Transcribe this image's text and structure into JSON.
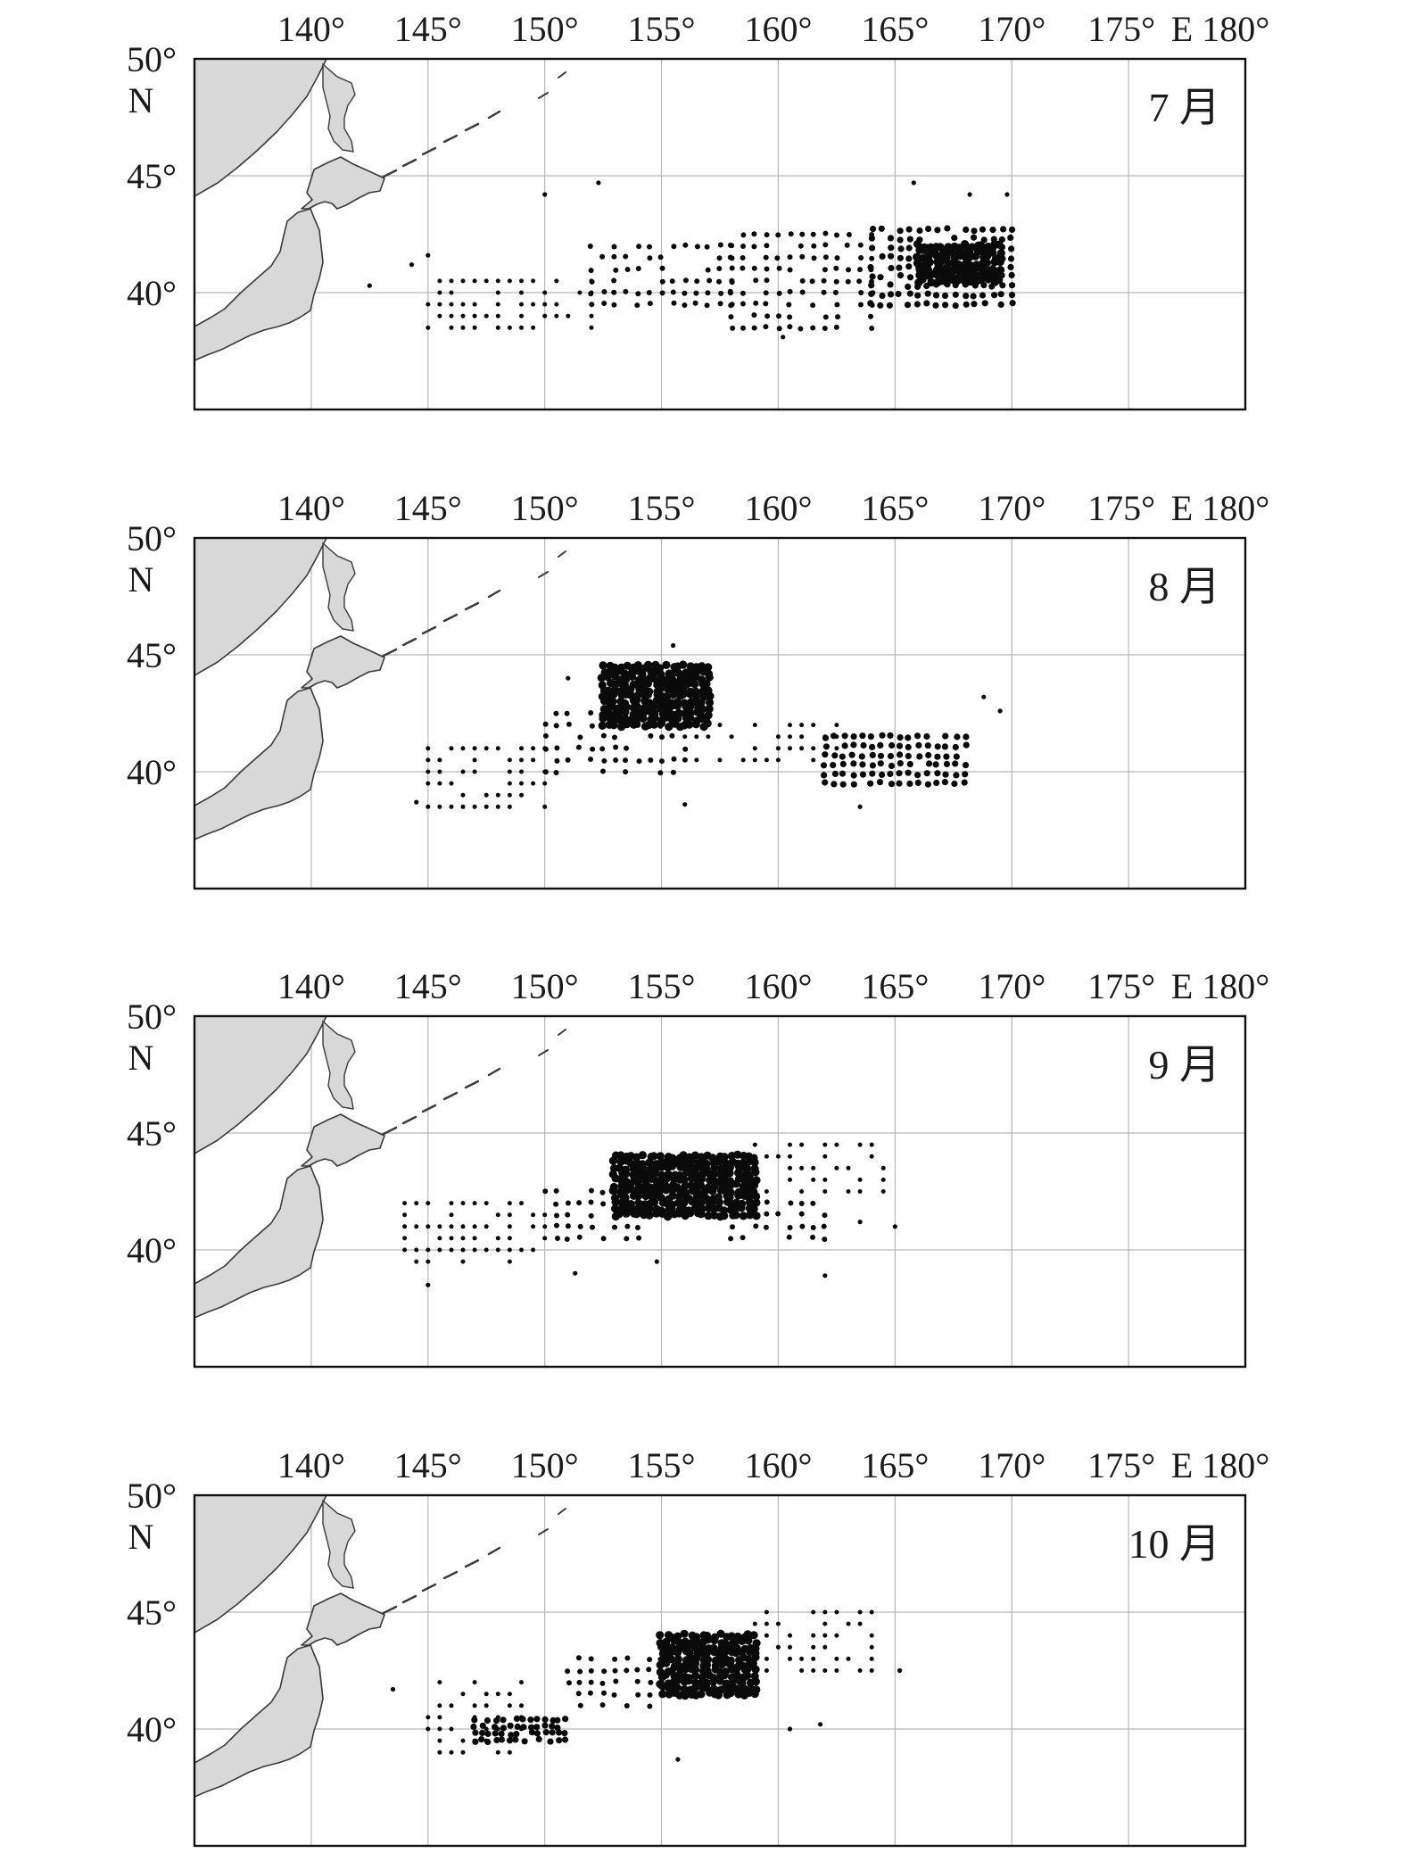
{
  "figure": {
    "lon_ticks": [
      "140°",
      "145°",
      "150°",
      "155°",
      "160°",
      "165°",
      "170°",
      "175°",
      "E 180°"
    ],
    "lon_tick_values": [
      140,
      145,
      150,
      155,
      160,
      165,
      170,
      175,
      180
    ],
    "lat_top_label": "50°",
    "lat_top_hemisphere": "N",
    "lat_ticks": [
      "45°",
      "40°"
    ],
    "lat_tick_values": [
      45,
      40
    ],
    "extent": {
      "lon": [
        135,
        180
      ],
      "lat": [
        35,
        50
      ]
    },
    "colors": {
      "land": "#d8d8d8",
      "coast": "#3a3a3a",
      "grid": "#b7b7b7",
      "points": "#0a0a0a",
      "frame": "#111111"
    }
  },
  "panels": [
    {
      "month": "7 月"
    },
    {
      "month": "8 月"
    },
    {
      "month": "9 月"
    },
    {
      "month": "10 月"
    }
  ],
  "chart_data": {
    "type": "scatter",
    "description_of_units": "longitude (°E), latitude (°N)",
    "panels": [
      {
        "month": "7 月",
        "clusters": [
          {
            "lon": [
              145,
              152
            ],
            "lat": [
              38.5,
              40.5
            ],
            "density": "sparse",
            "step": 0.5
          },
          {
            "lon": [
              152,
              158
            ],
            "lat": [
              39.5,
              42
            ],
            "density": "medium",
            "step": 0.5
          },
          {
            "lon": [
              158,
              164
            ],
            "lat": [
              38.5,
              42.5
            ],
            "density": "medium",
            "step": 0.5
          },
          {
            "lon": [
              164,
              170
            ],
            "lat": [
              39.5,
              43
            ],
            "density": "dense",
            "step": 0.4
          },
          {
            "lon": [
              166,
              169.5
            ],
            "lat": [
              40.5,
              42
            ],
            "density": "solid",
            "step": 0.25
          }
        ],
        "points": [
          [
            142.5,
            40.3
          ],
          [
            144.3,
            41.2
          ],
          [
            150,
            44.2
          ],
          [
            152.3,
            44.7
          ],
          [
            165.8,
            44.7
          ],
          [
            168.2,
            44.2
          ],
          [
            169.8,
            44.2
          ],
          [
            160.2,
            38.1
          ],
          [
            145,
            41.6
          ]
        ]
      },
      {
        "month": "8 月",
        "clusters": [
          {
            "lon": [
              145,
              150
            ],
            "lat": [
              38.5,
              41
            ],
            "density": "sparse",
            "step": 0.5
          },
          {
            "lon": [
              150,
              156
            ],
            "lat": [
              40,
              42.5
            ],
            "density": "medium",
            "step": 0.5
          },
          {
            "lon": [
              152.5,
              157
            ],
            "lat": [
              42,
              44.5
            ],
            "density": "solid",
            "step": 0.25
          },
          {
            "lon": [
              156,
              163
            ],
            "lat": [
              40.5,
              42
            ],
            "density": "sparse",
            "step": 0.5
          },
          {
            "lon": [
              162,
              168
            ],
            "lat": [
              39.5,
              41.5
            ],
            "density": "dense",
            "step": 0.4
          }
        ],
        "points": [
          [
            155.5,
            45.4
          ],
          [
            151,
            44
          ],
          [
            168.8,
            43.2
          ],
          [
            169.5,
            42.6
          ],
          [
            163.5,
            38.5
          ],
          [
            156,
            38.6
          ],
          [
            144.5,
            38.7
          ]
        ]
      },
      {
        "month": "9 月",
        "clusters": [
          {
            "lon": [
              144,
              150
            ],
            "lat": [
              39.5,
              42
            ],
            "density": "sparse",
            "step": 0.5
          },
          {
            "lon": [
              150,
              154
            ],
            "lat": [
              40.5,
              42.5
            ],
            "density": "medium",
            "step": 0.5
          },
          {
            "lon": [
              153,
              159
            ],
            "lat": [
              41.5,
              44
            ],
            "density": "solid",
            "step": 0.25
          },
          {
            "lon": [
              159,
              164.5
            ],
            "lat": [
              42.5,
              44.5
            ],
            "density": "sparse",
            "step": 0.5
          },
          {
            "lon": [
              158,
              162
            ],
            "lat": [
              40.5,
              42
            ],
            "density": "medium",
            "step": 0.5
          }
        ],
        "points": [
          [
            145,
            38.5
          ],
          [
            151.3,
            39
          ],
          [
            154.8,
            39.5
          ],
          [
            162,
            38.9
          ],
          [
            163.5,
            41.2
          ],
          [
            165,
            41
          ]
        ]
      },
      {
        "month": "10 月",
        "clusters": [
          {
            "lon": [
              145,
              149
            ],
            "lat": [
              39,
              42
            ],
            "density": "sparse",
            "step": 0.5
          },
          {
            "lon": [
              147,
              151
            ],
            "lat": [
              39.5,
              40.5
            ],
            "density": "dense",
            "step": 0.3
          },
          {
            "lon": [
              151,
              155
            ],
            "lat": [
              41,
              43
            ],
            "density": "medium",
            "step": 0.5
          },
          {
            "lon": [
              155,
              159
            ],
            "lat": [
              41.5,
              44
            ],
            "density": "solid",
            "step": 0.25
          },
          {
            "lon": [
              159,
              164
            ],
            "lat": [
              42.5,
              45
            ],
            "density": "sparse",
            "step": 0.5
          }
        ],
        "points": [
          [
            143.5,
            41.7
          ],
          [
            155.7,
            38.7
          ],
          [
            165.2,
            42.5
          ],
          [
            160.5,
            40
          ],
          [
            161.8,
            40.2
          ]
        ]
      }
    ]
  }
}
